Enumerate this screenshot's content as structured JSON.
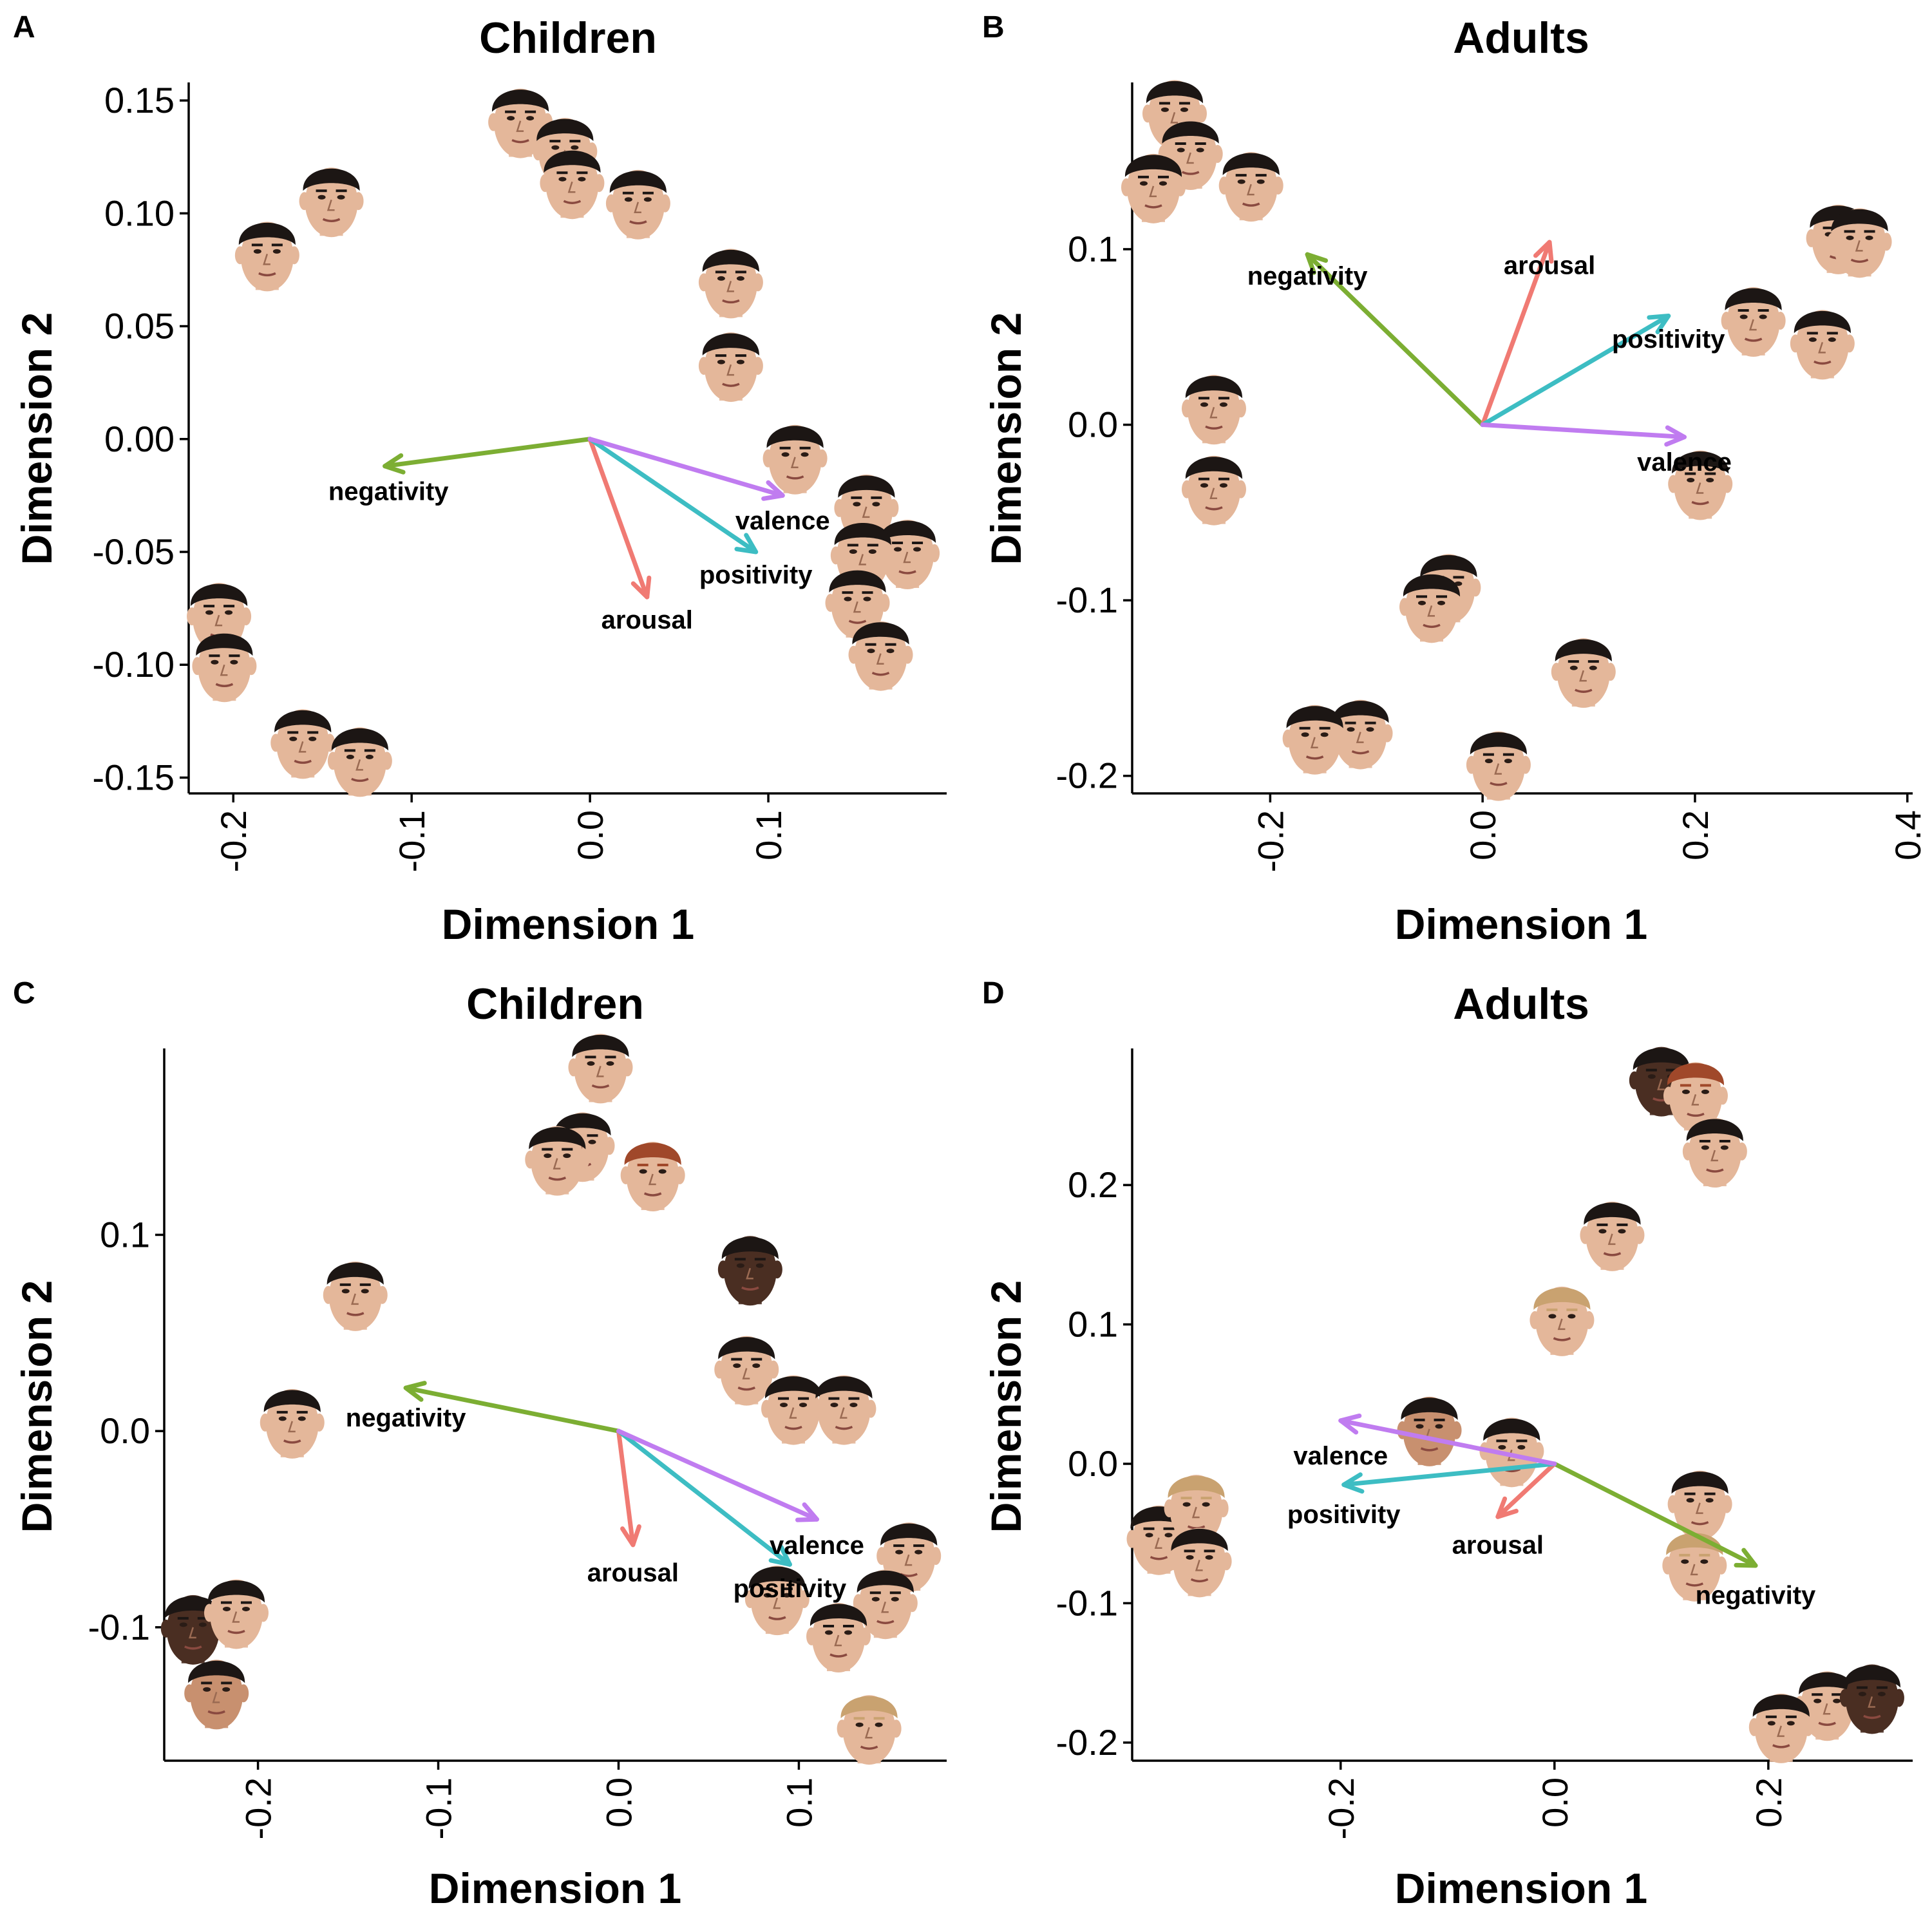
{
  "colors": {
    "negativity": "#7cae33",
    "arousal": "#f07a73",
    "positivity": "#3dbdc3",
    "valence": "#c07cf0",
    "skin_light": "#e4b79a",
    "skin_medium": "#c8906f",
    "skin_dark": "#4a2e22",
    "hair_dark": "#1c1614",
    "hair_red": "#a0482a",
    "hair_blonde": "#c9a270"
  },
  "chart_data": [
    {
      "type": "scatter",
      "panel": "A",
      "title": "Children",
      "xlabel": "Dimension 1",
      "ylabel": "Dimension 2",
      "xlim": [
        -0.225,
        0.2
      ],
      "ylim": [
        -0.157,
        0.158
      ],
      "x_ticks": [
        "-0.2",
        "-0.1",
        "0.0",
        "0.1"
      ],
      "x_tick_values": [
        -0.2,
        -0.1,
        0.0,
        0.1
      ],
      "y_ticks": [
        "0.15",
        "0.10",
        "0.05",
        "0.00",
        "-0.05",
        "-0.10",
        "-0.15"
      ],
      "y_tick_values": [
        0.15,
        0.1,
        0.05,
        0.0,
        -0.05,
        -0.1,
        -0.15
      ],
      "grid": false,
      "marker": "face-image",
      "arrows": [
        {
          "label": "negativity",
          "x": -0.115,
          "y": -0.012,
          "lx": -0.113,
          "ly": -0.023
        },
        {
          "label": "arousal",
          "x": 0.032,
          "y": -0.07,
          "lx": 0.032,
          "ly": -0.08
        },
        {
          "label": "positivity",
          "x": 0.093,
          "y": -0.05,
          "lx": 0.093,
          "ly": -0.06
        },
        {
          "label": "valence",
          "x": 0.108,
          "y": -0.025,
          "lx": 0.108,
          "ly": -0.036
        }
      ],
      "points": [
        {
          "x": -0.181,
          "y": 0.082,
          "skin": "light",
          "hair": "dark"
        },
        {
          "x": -0.145,
          "y": 0.106,
          "skin": "light",
          "hair": "dark"
        },
        {
          "x": -0.039,
          "y": 0.141,
          "skin": "light",
          "hair": "dark"
        },
        {
          "x": -0.014,
          "y": 0.128,
          "skin": "light",
          "hair": "dark"
        },
        {
          "x": -0.01,
          "y": 0.114,
          "skin": "light",
          "hair": "dark"
        },
        {
          "x": 0.027,
          "y": 0.105,
          "skin": "light",
          "hair": "dark"
        },
        {
          "x": 0.079,
          "y": 0.07,
          "skin": "light",
          "hair": "dark"
        },
        {
          "x": 0.079,
          "y": 0.033,
          "skin": "light",
          "hair": "dark"
        },
        {
          "x": 0.115,
          "y": -0.008,
          "skin": "light",
          "hair": "dark"
        },
        {
          "x": 0.155,
          "y": -0.03,
          "skin": "light",
          "hair": "dark"
        },
        {
          "x": 0.178,
          "y": -0.05,
          "skin": "light",
          "hair": "dark"
        },
        {
          "x": 0.153,
          "y": -0.051,
          "skin": "light",
          "hair": "dark"
        },
        {
          "x": 0.15,
          "y": -0.072,
          "skin": "light",
          "hair": "dark"
        },
        {
          "x": 0.163,
          "y": -0.095,
          "skin": "light",
          "hair": "dark"
        },
        {
          "x": -0.208,
          "y": -0.078,
          "skin": "light",
          "hair": "dark"
        },
        {
          "x": -0.205,
          "y": -0.1,
          "skin": "light",
          "hair": "dark"
        },
        {
          "x": -0.161,
          "y": -0.134,
          "skin": "light",
          "hair": "dark"
        },
        {
          "x": -0.129,
          "y": -0.142,
          "skin": "light",
          "hair": "dark"
        }
      ]
    },
    {
      "type": "scatter",
      "panel": "B",
      "title": "Adults",
      "xlabel": "Dimension 1",
      "ylabel": "Dimension 2",
      "xlim": [
        -0.33,
        0.405
      ],
      "ylim": [
        -0.21,
        0.195
      ],
      "x_ticks": [
        "-0.2",
        "0.0",
        "0.2",
        "0.4"
      ],
      "x_tick_values": [
        -0.2,
        0.0,
        0.2,
        0.4
      ],
      "y_ticks": [
        "0.1",
        "0.0",
        "-0.1",
        "-0.2"
      ],
      "y_tick_values": [
        0.1,
        0.0,
        -0.1,
        -0.2
      ],
      "grid": false,
      "marker": "face-image",
      "arrows": [
        {
          "label": "negativity",
          "x": -0.165,
          "y": 0.097,
          "lx": -0.165,
          "ly": 0.085
        },
        {
          "label": "arousal",
          "x": 0.063,
          "y": 0.104,
          "lx": 0.063,
          "ly": 0.091
        },
        {
          "label": "positivity",
          "x": 0.175,
          "y": 0.062,
          "lx": 0.175,
          "ly": 0.049
        },
        {
          "label": "valence",
          "x": 0.19,
          "y": -0.007,
          "lx": 0.19,
          "ly": -0.021
        }
      ],
      "points": [
        {
          "x": -0.29,
          "y": 0.178,
          "skin": "light",
          "hair": "dark"
        },
        {
          "x": -0.275,
          "y": 0.155,
          "skin": "light",
          "hair": "dark"
        },
        {
          "x": -0.31,
          "y": 0.136,
          "skin": "light",
          "hair": "dark"
        },
        {
          "x": -0.218,
          "y": 0.137,
          "skin": "light",
          "hair": "dark"
        },
        {
          "x": 0.335,
          "y": 0.107,
          "skin": "light",
          "hair": "dark"
        },
        {
          "x": 0.355,
          "y": 0.105,
          "skin": "light",
          "hair": "dark"
        },
        {
          "x": 0.255,
          "y": 0.06,
          "skin": "light",
          "hair": "dark"
        },
        {
          "x": 0.32,
          "y": 0.047,
          "skin": "light",
          "hair": "dark"
        },
        {
          "x": -0.253,
          "y": 0.01,
          "skin": "light",
          "hair": "dark"
        },
        {
          "x": -0.253,
          "y": -0.036,
          "skin": "light",
          "hair": "dark"
        },
        {
          "x": 0.205,
          "y": -0.033,
          "skin": "light",
          "hair": "dark"
        },
        {
          "x": -0.032,
          "y": -0.092,
          "skin": "light",
          "hair": "dark"
        },
        {
          "x": -0.048,
          "y": -0.103,
          "skin": "light",
          "hair": "dark"
        },
        {
          "x": 0.095,
          "y": -0.14,
          "skin": "light",
          "hair": "dark"
        },
        {
          "x": -0.115,
          "y": -0.175,
          "skin": "light",
          "hair": "dark"
        },
        {
          "x": -0.158,
          "y": -0.178,
          "skin": "light",
          "hair": "dark"
        },
        {
          "x": 0.015,
          "y": -0.193,
          "skin": "light",
          "hair": "dark"
        }
      ]
    },
    {
      "type": "scatter",
      "panel": "C",
      "title": "Children",
      "xlabel": "Dimension 1",
      "ylabel": "Dimension 2",
      "xlim": [
        -0.252,
        0.182
      ],
      "ylim": [
        -0.168,
        0.195
      ],
      "x_ticks": [
        "-0.2",
        "-0.1",
        "0.0",
        "0.1"
      ],
      "x_tick_values": [
        -0.2,
        -0.1,
        0.0,
        0.1
      ],
      "y_ticks": [
        "0.1",
        "0.0",
        "-0.1"
      ],
      "y_tick_values": [
        0.1,
        0.0,
        -0.1
      ],
      "grid": false,
      "marker": "face-image",
      "arrows": [
        {
          "label": "negativity",
          "x": -0.118,
          "y": 0.022,
          "lx": -0.118,
          "ly": 0.007
        },
        {
          "label": "arousal",
          "x": 0.008,
          "y": -0.058,
          "lx": 0.008,
          "ly": -0.072
        },
        {
          "label": "positivity",
          "x": 0.095,
          "y": -0.068,
          "lx": 0.095,
          "ly": -0.08
        },
        {
          "label": "valence",
          "x": 0.11,
          "y": -0.045,
          "lx": 0.11,
          "ly": -0.058
        }
      ],
      "points": [
        {
          "x": -0.01,
          "y": 0.186,
          "skin": "light",
          "hair": "dark"
        },
        {
          "x": -0.02,
          "y": 0.146,
          "skin": "light",
          "hair": "dark"
        },
        {
          "x": -0.034,
          "y": 0.139,
          "skin": "light",
          "hair": "dark"
        },
        {
          "x": 0.019,
          "y": 0.131,
          "skin": "light",
          "hair": "red"
        },
        {
          "x": -0.146,
          "y": 0.07,
          "skin": "light",
          "hair": "dark"
        },
        {
          "x": 0.073,
          "y": 0.083,
          "skin": "dark",
          "hair": "dark"
        },
        {
          "x": 0.071,
          "y": 0.032,
          "skin": "light",
          "hair": "dark"
        },
        {
          "x": 0.097,
          "y": 0.012,
          "skin": "light",
          "hair": "dark"
        },
        {
          "x": 0.125,
          "y": 0.012,
          "skin": "light",
          "hair": "dark"
        },
        {
          "x": -0.181,
          "y": 0.005,
          "skin": "light",
          "hair": "dark"
        },
        {
          "x": 0.161,
          "y": -0.063,
          "skin": "light",
          "hair": "dark"
        },
        {
          "x": 0.148,
          "y": -0.087,
          "skin": "light",
          "hair": "dark"
        },
        {
          "x": 0.088,
          "y": -0.085,
          "skin": "light",
          "hair": "dark"
        },
        {
          "x": 0.122,
          "y": -0.104,
          "skin": "light",
          "hair": "dark"
        },
        {
          "x": 0.139,
          "y": -0.151,
          "skin": "light",
          "hair": "blonde"
        },
        {
          "x": -0.236,
          "y": -0.1,
          "skin": "dark",
          "hair": "dark"
        },
        {
          "x": -0.212,
          "y": -0.092,
          "skin": "light",
          "hair": "dark"
        },
        {
          "x": -0.223,
          "y": -0.133,
          "skin": "medium",
          "hair": "dark"
        }
      ]
    },
    {
      "type": "scatter",
      "panel": "D",
      "title": "Adults",
      "xlabel": "Dimension 1",
      "ylabel": "Dimension 2",
      "xlim": [
        -0.395,
        0.335
      ],
      "ylim": [
        -0.213,
        0.298
      ],
      "x_ticks": [
        "-0.2",
        "0.0",
        "0.2"
      ],
      "x_tick_values": [
        -0.2,
        0.0,
        0.2
      ],
      "y_ticks": [
        "0.2",
        "0.1",
        "0.0",
        "-0.1",
        "-0.2"
      ],
      "y_tick_values": [
        0.2,
        0.1,
        0.0,
        -0.1,
        -0.2
      ],
      "grid": false,
      "marker": "face-image",
      "arrows": [
        {
          "label": "negativity",
          "x": 0.188,
          "y": -0.073,
          "lx": 0.188,
          "ly": -0.094
        },
        {
          "label": "arousal",
          "x": -0.053,
          "y": -0.038,
          "lx": -0.053,
          "ly": -0.058
        },
        {
          "label": "positivity",
          "x": -0.197,
          "y": -0.015,
          "lx": -0.197,
          "ly": -0.036
        },
        {
          "label": "valence",
          "x": -0.2,
          "y": 0.031,
          "lx": -0.2,
          "ly": 0.006
        }
      ],
      "points": [
        {
          "x": 0.1,
          "y": 0.276,
          "skin": "dark",
          "hair": "dark"
        },
        {
          "x": 0.132,
          "y": 0.265,
          "skin": "light",
          "hair": "red"
        },
        {
          "x": 0.15,
          "y": 0.225,
          "skin": "light",
          "hair": "dark"
        },
        {
          "x": 0.054,
          "y": 0.165,
          "skin": "light",
          "hair": "dark"
        },
        {
          "x": 0.007,
          "y": 0.104,
          "skin": "light",
          "hair": "blonde"
        },
        {
          "x": -0.117,
          "y": 0.025,
          "skin": "medium",
          "hair": "dark"
        },
        {
          "x": -0.04,
          "y": 0.01,
          "skin": "light",
          "hair": "dark"
        },
        {
          "x": 0.136,
          "y": -0.028,
          "skin": "light",
          "hair": "dark"
        },
        {
          "x": 0.131,
          "y": -0.072,
          "skin": "light",
          "hair": "blonde"
        },
        {
          "x": -0.37,
          "y": -0.053,
          "skin": "light",
          "hair": "dark"
        },
        {
          "x": -0.335,
          "y": -0.031,
          "skin": "light",
          "hair": "blonde"
        },
        {
          "x": -0.332,
          "y": -0.069,
          "skin": "light",
          "hair": "dark"
        },
        {
          "x": 0.255,
          "y": -0.172,
          "skin": "light",
          "hair": "dark"
        },
        {
          "x": 0.297,
          "y": -0.167,
          "skin": "dark",
          "hair": "dark"
        },
        {
          "x": 0.212,
          "y": -0.188,
          "skin": "light",
          "hair": "dark"
        }
      ]
    }
  ]
}
